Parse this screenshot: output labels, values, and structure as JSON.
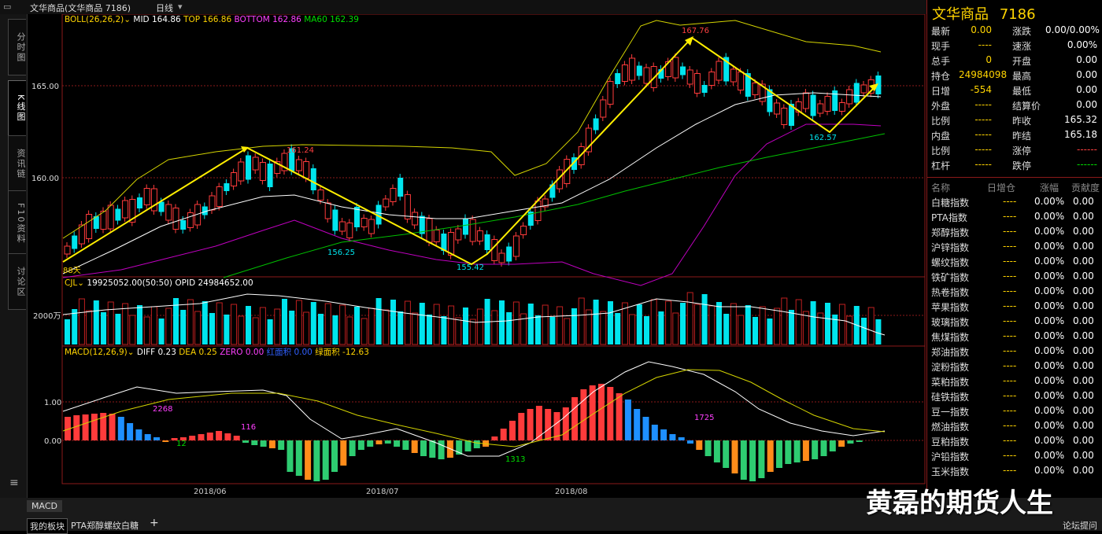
{
  "window": {
    "title": "文华商品(文华商品  7186)",
    "period": "日线"
  },
  "side_tabs": [
    "分时图",
    "K线图",
    "资讯链",
    "F10资料",
    "讨论区"
  ],
  "indicators": {
    "boll": {
      "label": "BOLL(26,26,2)",
      "mid": "MID 164.86",
      "top": "TOP 166.86",
      "bottom": "BOTTOM 162.86",
      "ma60": "MA60 162.39"
    },
    "vol": {
      "label": "CJL",
      "cjl": "19925052.00(50:50)",
      "opid": "OPID 24984652.00"
    },
    "macd": {
      "label": "MACD(12,26,9)",
      "diff": "DIFF 0.23",
      "dea": "DEA 0.25",
      "zero": "ZERO 0.00",
      "red_area": "红面积 0.00",
      "green_area": "绿面积 -12.63"
    }
  },
  "price_axis": [
    "165.00",
    "160.00"
  ],
  "vol_axis": [
    "2000万"
  ],
  "macd_axis": [
    "1.00",
    "0.00"
  ],
  "annotations": {
    "left_label": "88天",
    "p1": "161.24",
    "p2": "156.25",
    "p3": "155.42",
    "p4": "167.76",
    "p5": "162.57",
    "m1": "2268",
    "m2": "116",
    "m3": "12",
    "m4": "1313",
    "m5": "1725"
  },
  "dates": [
    "2018/06",
    "2018/07",
    "2018/08"
  ],
  "colors": {
    "up": "#ff3b3b",
    "down": "#00e5ee",
    "boll_mid": "#ffffff",
    "boll_band": "#d4d400",
    "ma60": "#00c000",
    "lower": "#c000c0"
  },
  "quote": {
    "name": "文华商品",
    "code": "7186",
    "rows": [
      [
        "最新",
        "0.00",
        "涨跌",
        "0.00/0.00%"
      ],
      [
        "现手",
        "----",
        "速涨",
        "0.00%"
      ],
      [
        "总手",
        "0",
        "开盘",
        "0.00"
      ],
      [
        "持仓",
        "24984098",
        "最高",
        "0.00"
      ],
      [
        "日增",
        "-554",
        "最低",
        "0.00"
      ],
      [
        "外盘",
        "-----",
        "结算价",
        "0.00"
      ],
      [
        "比例",
        "-----",
        "昨收",
        "165.32"
      ],
      [
        "内盘",
        "-----",
        "昨结",
        "165.18"
      ],
      [
        "比例",
        "-----",
        "涨停",
        "------"
      ],
      [
        "杠杆",
        "-----",
        "跌停",
        "------"
      ]
    ]
  },
  "index_header": [
    "名称",
    "日增仓",
    "涨幅",
    "贡献度"
  ],
  "index_list": [
    [
      "白糖指数",
      "----",
      "0.00%",
      "0.00"
    ],
    [
      "PTA指数",
      "----",
      "0.00%",
      "0.00"
    ],
    [
      "郑醇指数",
      "----",
      "0.00%",
      "0.00"
    ],
    [
      "沪锌指数",
      "----",
      "0.00%",
      "0.00"
    ],
    [
      "螺纹指数",
      "----",
      "0.00%",
      "0.00"
    ],
    [
      "铁矿指数",
      "----",
      "0.00%",
      "0.00"
    ],
    [
      "热卷指数",
      "----",
      "0.00%",
      "0.00"
    ],
    [
      "苹果指数",
      "----",
      "0.00%",
      "0.00"
    ],
    [
      "玻璃指数",
      "----",
      "0.00%",
      "0.00"
    ],
    [
      "焦煤指数",
      "----",
      "0.00%",
      "0.00"
    ],
    [
      "郑油指数",
      "----",
      "0.00%",
      "0.00"
    ],
    [
      "淀粉指数",
      "----",
      "0.00%",
      "0.00"
    ],
    [
      "菜粕指数",
      "----",
      "0.00%",
      "0.00"
    ],
    [
      "硅铁指数",
      "----",
      "0.00%",
      "0.00"
    ],
    [
      "豆一指数",
      "----",
      "0.00%",
      "0.00"
    ],
    [
      "燃油指数",
      "----",
      "0.00%",
      "0.00"
    ],
    [
      "豆粕指数",
      "----",
      "0.00%",
      "0.00"
    ],
    [
      "沪铅指数",
      "----",
      "0.00%",
      "0.00"
    ],
    [
      "玉米指数",
      "----",
      "0.00%",
      "0.00"
    ]
  ],
  "bottom_tabs": {
    "macd": "MACD",
    "board": "我的板块",
    "custom": "PTA郑醇螺纹白糖",
    "add": "+",
    "forum": "论坛提问"
  },
  "watermark": "黄磊的期货人生"
}
